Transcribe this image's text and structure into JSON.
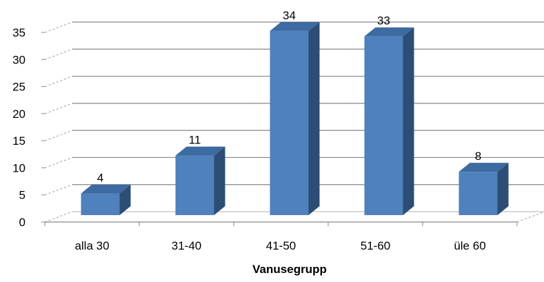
{
  "chart_data": {
    "type": "bar",
    "categories": [
      "alla 30",
      "31-40",
      "41-50",
      "51-60",
      "üle 60"
    ],
    "values": [
      4,
      11,
      34,
      33,
      8
    ],
    "xlabel": "Vanusegrupp",
    "ylabel": "",
    "ylim": [
      0,
      35
    ],
    "yticks": [
      0,
      5,
      10,
      15,
      20,
      25,
      30,
      35
    ],
    "grid": true,
    "legend": "none",
    "colors": {
      "bar_front": "#4f81bd",
      "bar_side": "#2c4d75",
      "bar_top": "#3d6aa0",
      "grid": "#868686"
    }
  }
}
